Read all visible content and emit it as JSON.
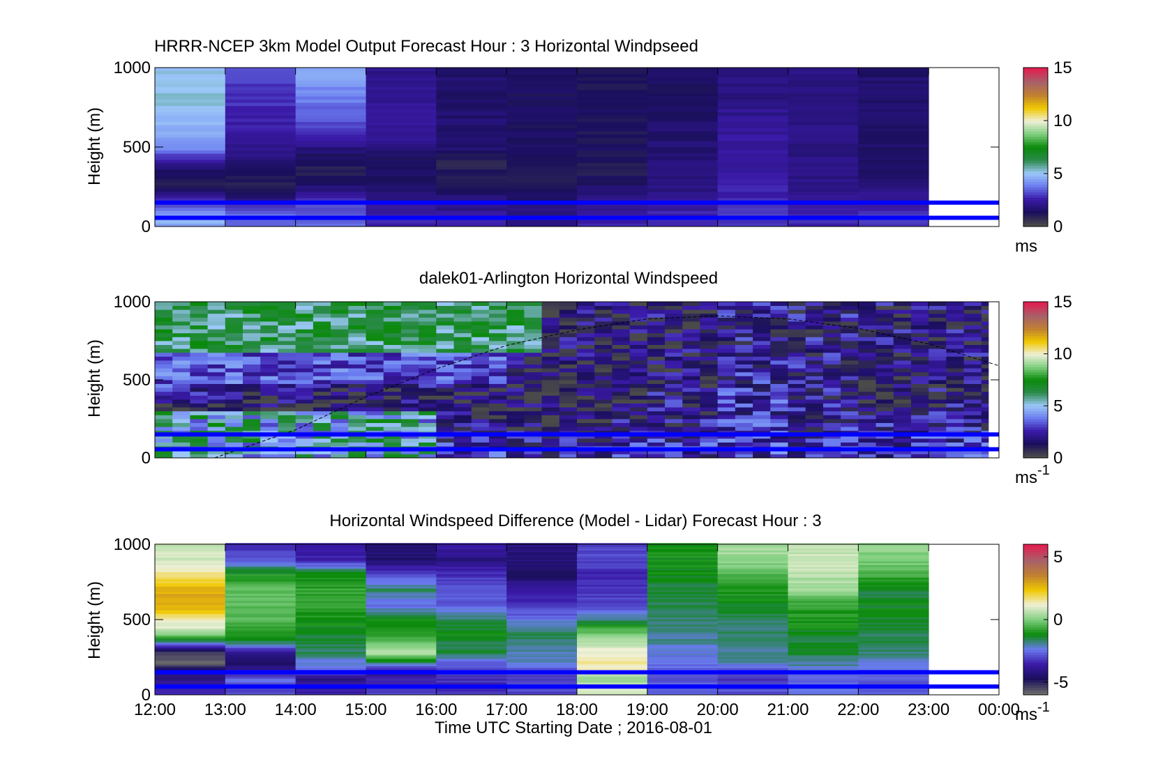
{
  "figure": {
    "xlabel": "Time UTC  Starting Date ; 2016-08-01",
    "x_ticks": [
      "12:00",
      "13:00",
      "14:00",
      "15:00",
      "16:00",
      "17:00",
      "18:00",
      "19:00",
      "20:00",
      "21:00",
      "22:00",
      "23:00",
      "00:00"
    ]
  },
  "chart_data": [
    {
      "type": "heatmap",
      "title": "HRRR-NCEP 3km Model Output   Forecast Hour : 3 Horizontal Windpseed",
      "xlabel": "",
      "ylabel": "Height (m)",
      "x_range_hours": [
        12,
        24
      ],
      "ylim": [
        0,
        1000
      ],
      "y_ticks": [
        0,
        500,
        1000
      ],
      "colorbar": {
        "label": "ms",
        "range": [
          0,
          15
        ],
        "ticks": [
          0,
          5,
          10,
          15
        ]
      },
      "data_end_hour": 23,
      "hours": [
        12,
        13,
        14,
        15,
        16,
        17,
        18,
        19,
        20,
        21,
        22
      ],
      "levels_m": [
        1000,
        800,
        600,
        480,
        400,
        320,
        250,
        180,
        120,
        60
      ],
      "values": [
        [
          5.0,
          3.0,
          4.5,
          2.0,
          1.5,
          1.3,
          1.2,
          1.4,
          1.8,
          1.8,
          1.5
        ],
        [
          5.2,
          2.8,
          3.8,
          2.2,
          1.5,
          1.3,
          1.2,
          1.4,
          1.9,
          1.8,
          1.5
        ],
        [
          4.5,
          2.4,
          3.0,
          2.3,
          1.6,
          1.3,
          1.2,
          1.5,
          2.3,
          1.9,
          1.5
        ],
        [
          3.8,
          2.0,
          1.6,
          1.7,
          1.4,
          1.2,
          1.2,
          1.6,
          2.4,
          1.9,
          1.4
        ],
        [
          2.0,
          1.5,
          1.1,
          1.1,
          0.8,
          1.1,
          1.1,
          1.7,
          2.4,
          1.9,
          1.5
        ],
        [
          1.2,
          1.0,
          1.0,
          1.3,
          1.1,
          1.0,
          1.1,
          1.7,
          2.5,
          1.9,
          1.6
        ],
        [
          0.9,
          0.9,
          1.6,
          1.5,
          1.3,
          1.0,
          1.5,
          1.8,
          2.6,
          1.9,
          1.8
        ],
        [
          2.4,
          1.6,
          2.5,
          1.8,
          1.7,
          1.3,
          1.8,
          2.0,
          2.6,
          2.0,
          2.1
        ],
        [
          3.4,
          3.1,
          3.3,
          2.2,
          2.0,
          1.7,
          2.2,
          2.4,
          2.7,
          2.3,
          2.6
        ],
        [
          4.6,
          3.5,
          3.5,
          2.6,
          2.4,
          2.1,
          2.5,
          2.6,
          2.8,
          2.6,
          2.9
        ]
      ],
      "reference_lines_m": [
        150,
        55
      ]
    },
    {
      "type": "heatmap",
      "title": "dalek01-Arlington  Horizontal Windspeed",
      "xlabel": "",
      "ylabel": "Height (m)",
      "x_range_hours": [
        12,
        24
      ],
      "ylim": [
        0,
        1000
      ],
      "y_ticks": [
        0,
        500,
        1000
      ],
      "colorbar": {
        "label": "ms-1",
        "label_main": "ms",
        "label_sup": "-1",
        "range": [
          0,
          15
        ],
        "ticks": [
          0,
          5,
          10,
          15
        ]
      },
      "data_end_hour": 23.85,
      "reference_lines_m": [
        150,
        55
      ],
      "boundary_curve": {
        "hours": [
          12.85,
          14.0,
          15.0,
          16.0,
          17.0,
          18.0,
          19.0,
          20.0,
          21.0,
          22.0,
          23.0,
          24.0
        ],
        "heights_m": [
          0,
          180,
          390,
          570,
          720,
          820,
          890,
          910,
          890,
          830,
          730,
          590
        ]
      }
    },
    {
      "type": "heatmap",
      "title": "Horizontal Windspeed Difference (Model - Lidar) Forecast Hour : 3",
      "xlabel": "Time UTC  Starting Date ; 2016-08-01",
      "ylabel": "Height (m)",
      "x_range_hours": [
        12,
        24
      ],
      "ylim": [
        0,
        1000
      ],
      "y_ticks": [
        0,
        500,
        1000
      ],
      "colorbar": {
        "label": "ms-1",
        "label_main": "ms",
        "label_sup": "-1",
        "range": [
          -6,
          6
        ],
        "ticks": [
          -5,
          0,
          5
        ]
      },
      "data_end_hour": 23,
      "hours": [
        12,
        13,
        14,
        15,
        16,
        17,
        18,
        19,
        20,
        21,
        22
      ],
      "levels_m": [
        1000,
        900,
        800,
        700,
        600,
        500,
        420,
        350,
        280,
        220,
        160,
        100,
        50
      ],
      "values": [
        [
          0.8,
          -3.5,
          -3.8,
          -4.2,
          -3.5,
          -4.3,
          -3.0,
          -1.0,
          0.5,
          0.7,
          0.2
        ],
        [
          0.9,
          -2.8,
          -3.5,
          -4.6,
          -4.2,
          -4.3,
          -3.0,
          -1.1,
          0.3,
          0.8,
          0.0
        ],
        [
          1.7,
          -1.0,
          -1.2,
          -3.0,
          -3.3,
          -4.8,
          -3.5,
          -1.2,
          -0.5,
          0.6,
          -0.6
        ],
        [
          2.8,
          -0.4,
          -0.8,
          -1.7,
          -3.0,
          -3.5,
          -3.3,
          -1.5,
          -1.0,
          0.3,
          -1.5
        ],
        [
          3.0,
          -0.3,
          -0.8,
          -2.6,
          -2.7,
          -3.4,
          -3.1,
          -1.6,
          -1.3,
          -0.8,
          -1.2
        ],
        [
          1.5,
          -0.4,
          -1.0,
          -1.2,
          -1.6,
          -2.4,
          -1.8,
          -1.8,
          -1.6,
          -1.0,
          -1.4
        ],
        [
          0.6,
          -0.9,
          -1.3,
          -1.0,
          -1.2,
          -1.6,
          -0.3,
          -1.8,
          -1.7,
          -1.3,
          -1.5
        ],
        [
          -2.0,
          -1.5,
          -1.5,
          -0.4,
          -1.5,
          -1.8,
          0.6,
          -2.0,
          -1.8,
          -1.4,
          -1.6
        ],
        [
          -5.5,
          -4.2,
          -1.7,
          0.8,
          -1.4,
          -2.0,
          1.3,
          -2.3,
          -1.9,
          -1.5,
          -1.8
        ],
        [
          -6.0,
          -4.6,
          -2.2,
          -1.6,
          -2.6,
          -2.3,
          1.6,
          -2.5,
          -2.0,
          -1.8,
          -2.2
        ],
        [
          -4.3,
          -3.8,
          -3.0,
          -4.0,
          -3.2,
          -3.0,
          1.1,
          -2.7,
          -3.0,
          -2.5,
          -2.6
        ],
        [
          -4.2,
          -2.5,
          -4.2,
          -3.6,
          -3.4,
          -3.3,
          0.2,
          -2.8,
          -3.2,
          -2.6,
          -2.8
        ],
        [
          -3.5,
          -3.0,
          -3.6,
          -3.0,
          -3.3,
          -3.0,
          0.9,
          -2.6,
          -2.9,
          -2.4,
          -2.7
        ]
      ],
      "reference_lines_m": [
        150,
        55
      ]
    }
  ],
  "colors": {
    "reference_line": "#0000ff",
    "axis": "#000000",
    "speed_scale": [
      "#4a4a4a",
      "#1a0f5c",
      "#3a1aa8",
      "#6a7bf0",
      "#9cc8f8",
      "#2a8a4a",
      "#0a8a0a",
      "#7fcf7f",
      "#f0f0d8",
      "#f0c800",
      "#c08030",
      "#a8606a",
      "#e02050"
    ],
    "diff_scale": [
      "#6a6a6a",
      "#1a0f5c",
      "#3a1aa8",
      "#6a7bf0",
      "#0a8a0a",
      "#7fcf7f",
      "#f0f0d8",
      "#f0c800",
      "#c08030",
      "#a8606a",
      "#e02050"
    ]
  }
}
